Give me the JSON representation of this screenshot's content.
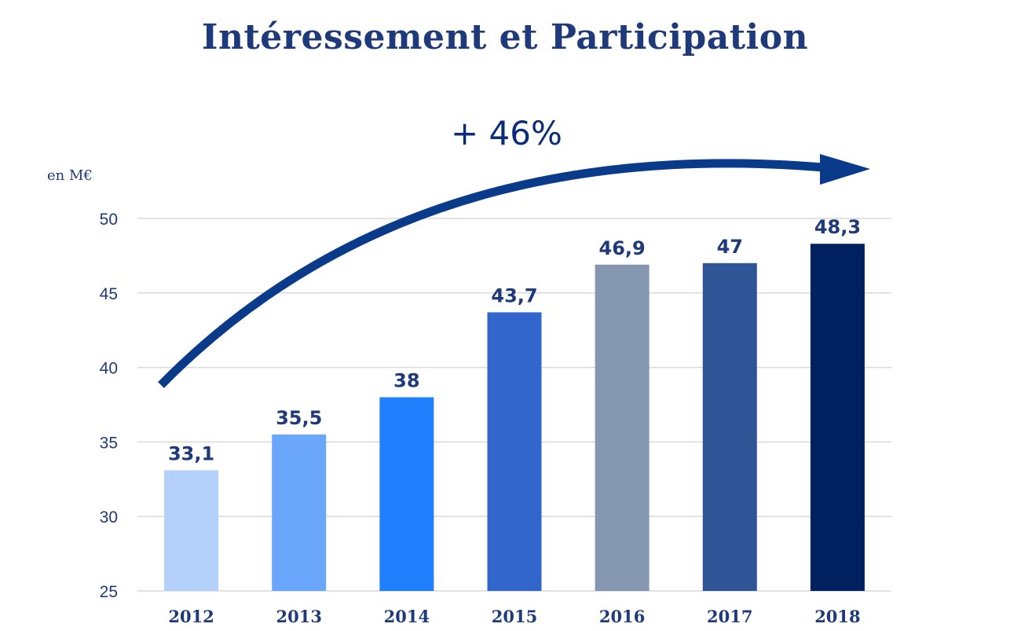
{
  "title": "Intéressement et Participation",
  "growth_label": "+ 46%",
  "unit_label": "en M€",
  "colors": {
    "title": "#1f3a7a",
    "arrow": "#0a3b8a",
    "labels": "#1f3a7a",
    "grid": "#d9d9d9",
    "bars": [
      "#b3d1fb",
      "#6aa7fb",
      "#1f7ffd",
      "#3366cc",
      "#8496b0",
      "#2f5597",
      "#002060"
    ]
  },
  "chart_data": {
    "type": "bar",
    "categories": [
      "2012",
      "2013",
      "2014",
      "2015",
      "2016",
      "2017",
      "2018"
    ],
    "values": [
      33.1,
      35.5,
      38,
      43.7,
      46.9,
      47,
      48.3
    ],
    "value_labels": [
      "33,1",
      "35,5",
      "38",
      "43,7",
      "46,9",
      "47",
      "48,3"
    ],
    "ylim": [
      25,
      50
    ],
    "yticks": [
      25,
      30,
      35,
      40,
      45,
      50
    ],
    "grid": true,
    "legend": "none"
  }
}
